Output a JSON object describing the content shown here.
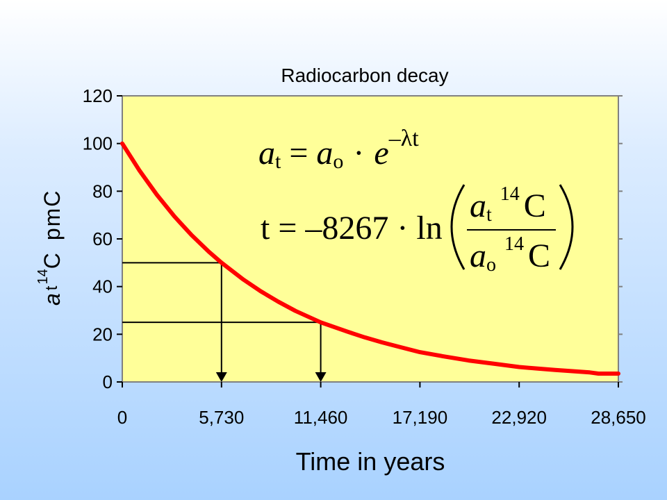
{
  "chart_data": {
    "type": "line",
    "title": "Radiocarbon decay",
    "xlabel": "Time in years",
    "ylabel": {
      "a": "a",
      "t": "t",
      "iso": "14",
      "c": "C",
      "unit": "pmC"
    },
    "xlim": [
      0,
      28650
    ],
    "ylim": [
      0,
      120
    ],
    "x_ticks": [
      0,
      5730,
      11460,
      17190,
      22920,
      28650
    ],
    "x_tick_labels": [
      "0",
      "5,730",
      "11,460",
      "17,190",
      "22,920",
      "28,650"
    ],
    "y_ticks": [
      0,
      20,
      40,
      60,
      80,
      100,
      120
    ],
    "y_tick_labels": [
      "0",
      "20",
      "40",
      "60",
      "80",
      "100",
      "120"
    ],
    "series": [
      {
        "color": "#ff0000",
        "x": [
          0,
          1000,
          2000,
          3000,
          4000,
          5000,
          5730,
          7000,
          8000,
          9000,
          10000,
          11460,
          13000,
          14000,
          15000,
          16000,
          17190,
          18500,
          20000,
          21500,
          22920,
          24000,
          25000,
          26000,
          27000,
          27500,
          28650
        ],
        "y": [
          100,
          88.6,
          78.5,
          69.5,
          61.6,
          54.6,
          50,
          42.9,
          38.0,
          33.7,
          29.8,
          25,
          21.1,
          18.7,
          16.6,
          14.7,
          12.5,
          10.8,
          9.0,
          7.6,
          6.25,
          5.6,
          5.0,
          4.5,
          4.0,
          3.5,
          3.5
        ]
      }
    ],
    "guides": [
      {
        "x": 5730,
        "y": 50
      },
      {
        "x": 11460,
        "y": 25
      }
    ],
    "plot_background": "#ffff99",
    "formula_1": {
      "lhs_a": "a",
      "lhs_sub": "t",
      "eq": "=",
      "rhs_a": "a",
      "rhs_sub": "o",
      "dot": "·",
      "e": "e",
      "exp_minus": "–",
      "exp_lambda": "λ",
      "exp_t": "t"
    },
    "formula_2": {
      "lead": "t = –8267 · ln",
      "num_a": "a",
      "num_sub": "t",
      "num_iso": "14",
      "num_c": "C",
      "den_a": "a",
      "den_sub": "o",
      "den_iso": "14",
      "den_c": "C"
    }
  }
}
